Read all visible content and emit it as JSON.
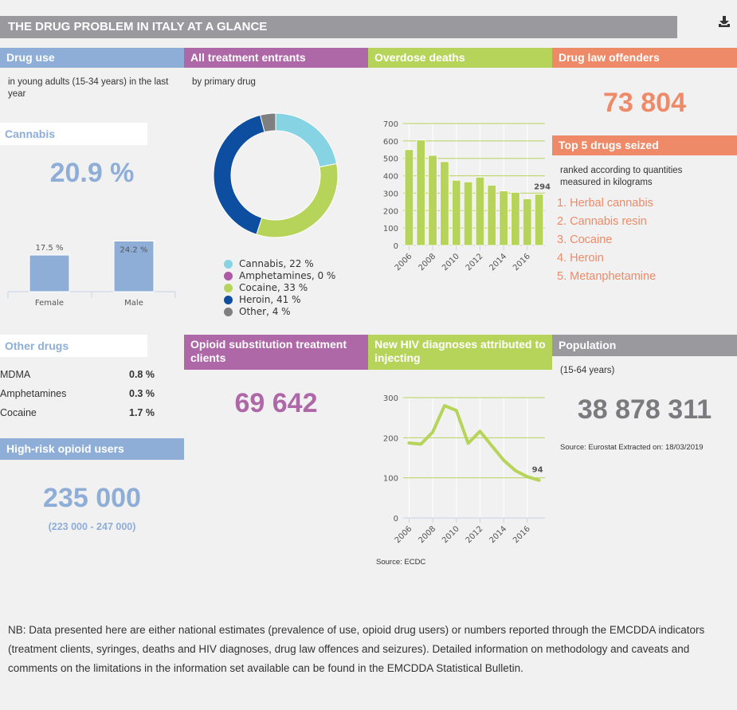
{
  "title": "THE DRUG PROBLEM IN ITALY AT A GLANCE",
  "download_icon": "download-icon",
  "colors": {
    "blue": "#8eaed8",
    "purple": "#ae67a7",
    "green": "#b7d45a",
    "orange": "#ee8a68",
    "grey": "#9a999e"
  },
  "drug_use": {
    "header": "Drug use",
    "subtitle": "in young adults (15-34 years) in the last year",
    "cannabis_label": "Cannabis",
    "cannabis_value": "20.9 %",
    "gender_chart": {
      "type": "bar",
      "categories": [
        "Female",
        "Male"
      ],
      "values": [
        17.5,
        24.2
      ],
      "labels": [
        "17.5 %",
        "24.2 %"
      ],
      "ylim": [
        0,
        25
      ]
    }
  },
  "treatment": {
    "header": "All treatment entrants",
    "subtitle": "by primary drug",
    "legend": [
      "Cannabis, 22 %",
      "Amphetamines, 0 %",
      "Cocaine, 33 %",
      "Heroin, 41 %",
      "Other, 4 %"
    ]
  },
  "overdose": {
    "header": "Overdose deaths"
  },
  "offenders": {
    "header": "Drug law offenders",
    "value": "73 804",
    "seized_header": "Top 5 drugs seized",
    "seized_sub": "ranked according to quantities measured in kilograms",
    "seized": [
      "Herbal cannabis",
      "Cannabis resin",
      "Cocaine",
      "Heroin",
      "Metanphetamine"
    ],
    "seized_numbers": [
      "1.",
      "2.",
      "3.",
      "4.",
      "5."
    ]
  },
  "other_drugs": {
    "header": "Other drugs",
    "rows": [
      {
        "name": "MDMA",
        "value": "0.8 %"
      },
      {
        "name": "Amphetamines",
        "value": "0.3 %"
      },
      {
        "name": "Cocaine",
        "value": "1.7 %"
      }
    ]
  },
  "high_risk": {
    "header": "High-risk opioid users",
    "value": "235 000",
    "range": "(223 000 - 247 000)"
  },
  "ost": {
    "header": "Opioid substitution treatment clients",
    "value": "69 642"
  },
  "hiv": {
    "header": "New HIV diagnoses attributed to injecting",
    "source": "Source: ECDC"
  },
  "population": {
    "header": "Population",
    "subtitle": "(15-64 years)",
    "value": "38 878 311",
    "source": "Source: Eurostat Extracted on: 18/03/2019"
  },
  "footnote": "NB: Data presented here are either national estimates (prevalence of use, opioid drug users) or numbers reported through the EMCDDA indicators (treatment clients, syringes, deaths and HIV diagnoses, drug law offences and seizures). Detailed information on methodology and caveats and comments on the limitations in the information set available can be found in the EMCDDA Statistical Bulletin.",
  "chart_data": [
    {
      "type": "pie",
      "title": "All treatment entrants by primary drug",
      "labels": [
        "Cannabis",
        "Amphetamines",
        "Cocaine",
        "Heroin",
        "Other"
      ],
      "values": [
        22,
        0,
        33,
        41,
        4
      ],
      "colors": [
        "#86d3e3",
        "#ae58a8",
        "#b7d45a",
        "#0d4ea0",
        "#7f7f7f"
      ]
    },
    {
      "type": "bar",
      "title": "Overdose deaths",
      "x": [
        2006,
        2007,
        2008,
        2009,
        2010,
        2011,
        2012,
        2013,
        2014,
        2015,
        2016,
        2017
      ],
      "values": [
        550,
        605,
        517,
        481,
        374,
        365,
        392,
        346,
        313,
        305,
        268,
        294
      ],
      "ylim": [
        0,
        700
      ],
      "yticks": [
        0,
        100,
        200,
        300,
        400,
        500,
        600,
        700
      ],
      "xticks": [
        "2006",
        "2008",
        "2010",
        "2012",
        "2014",
        "2016"
      ],
      "last_label": "294",
      "grid": true
    },
    {
      "type": "line",
      "title": "New HIV diagnoses attributed to injecting",
      "x": [
        2006,
        2007,
        2008,
        2009,
        2010,
        2011,
        2012,
        2013,
        2014,
        2015,
        2016,
        2017
      ],
      "values": [
        187,
        184,
        214,
        280,
        268,
        186,
        216,
        180,
        144,
        118,
        103,
        94
      ],
      "ylim": [
        0,
        300
      ],
      "yticks": [
        0,
        100,
        200,
        300
      ],
      "xticks": [
        "2006",
        "2008",
        "2010",
        "2012",
        "2014",
        "2016"
      ],
      "last_label": "94",
      "grid": true
    }
  ]
}
